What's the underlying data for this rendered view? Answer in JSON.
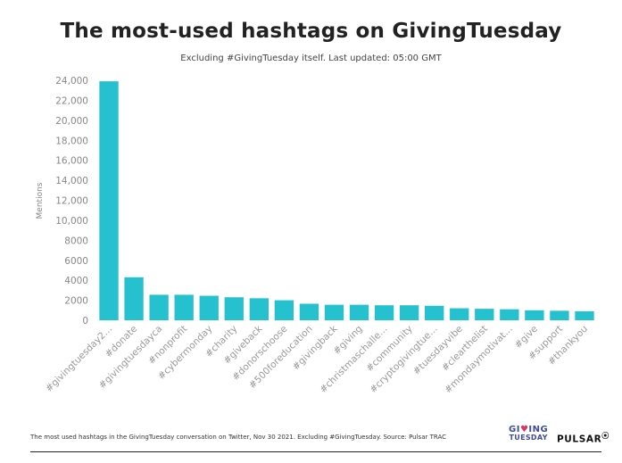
{
  "title": "The most-used hashtags on GivingTuesday",
  "subtitle": "Excluding #GivingTuesday itself. Last updated: 05:00 GMT",
  "footer": {
    "note": "The most used hashtags in the GivingTuesday conversation on Twitter, Nov 30 2021. Excluding #GivingTuesday. Source: Pulsar TRAC",
    "logo_giving_line1_a": "GI",
    "logo_giving_line1_heart": "♥",
    "logo_giving_line1_b": "ING",
    "logo_giving_line2": "TUESDAY",
    "logo_pulsar": "PULSAR",
    "logo_pulsar_mark": "⦿"
  },
  "chart_data": {
    "type": "bar",
    "ylabel": "Mentions",
    "xlabel": "",
    "ylim": [
      0,
      24000
    ],
    "yticks": [
      0,
      2000,
      4000,
      6000,
      8000,
      10000,
      12000,
      14000,
      16000,
      18000,
      20000,
      22000,
      24000
    ],
    "ytick_labels": [
      "0",
      "2000",
      "4000",
      "6000",
      "8000",
      "10,000",
      "12,000",
      "14,000",
      "16,000",
      "18,000",
      "20,000",
      "22,000",
      "24,000"
    ],
    "bar_color": "#26c1cf",
    "grid": false,
    "categories": [
      "#givingtuesday2…",
      "#donate",
      "#givingtuesdayca",
      "#nonprofit",
      "#cybermonday",
      "#charity",
      "#giveback",
      "#donorschoose",
      "#500foreducation",
      "#givingback",
      "#giving",
      "#christmaschalle…",
      "#community",
      "#cryptogivingtue…",
      "#tuesdayvibe",
      "#clearthelist",
      "#mondaymotivat…",
      "#give",
      "#support",
      "#thankyou"
    ],
    "values": [
      23900,
      4300,
      2550,
      2550,
      2450,
      2300,
      2200,
      2000,
      1650,
      1550,
      1550,
      1500,
      1500,
      1450,
      1200,
      1150,
      1100,
      1000,
      950,
      900
    ]
  }
}
